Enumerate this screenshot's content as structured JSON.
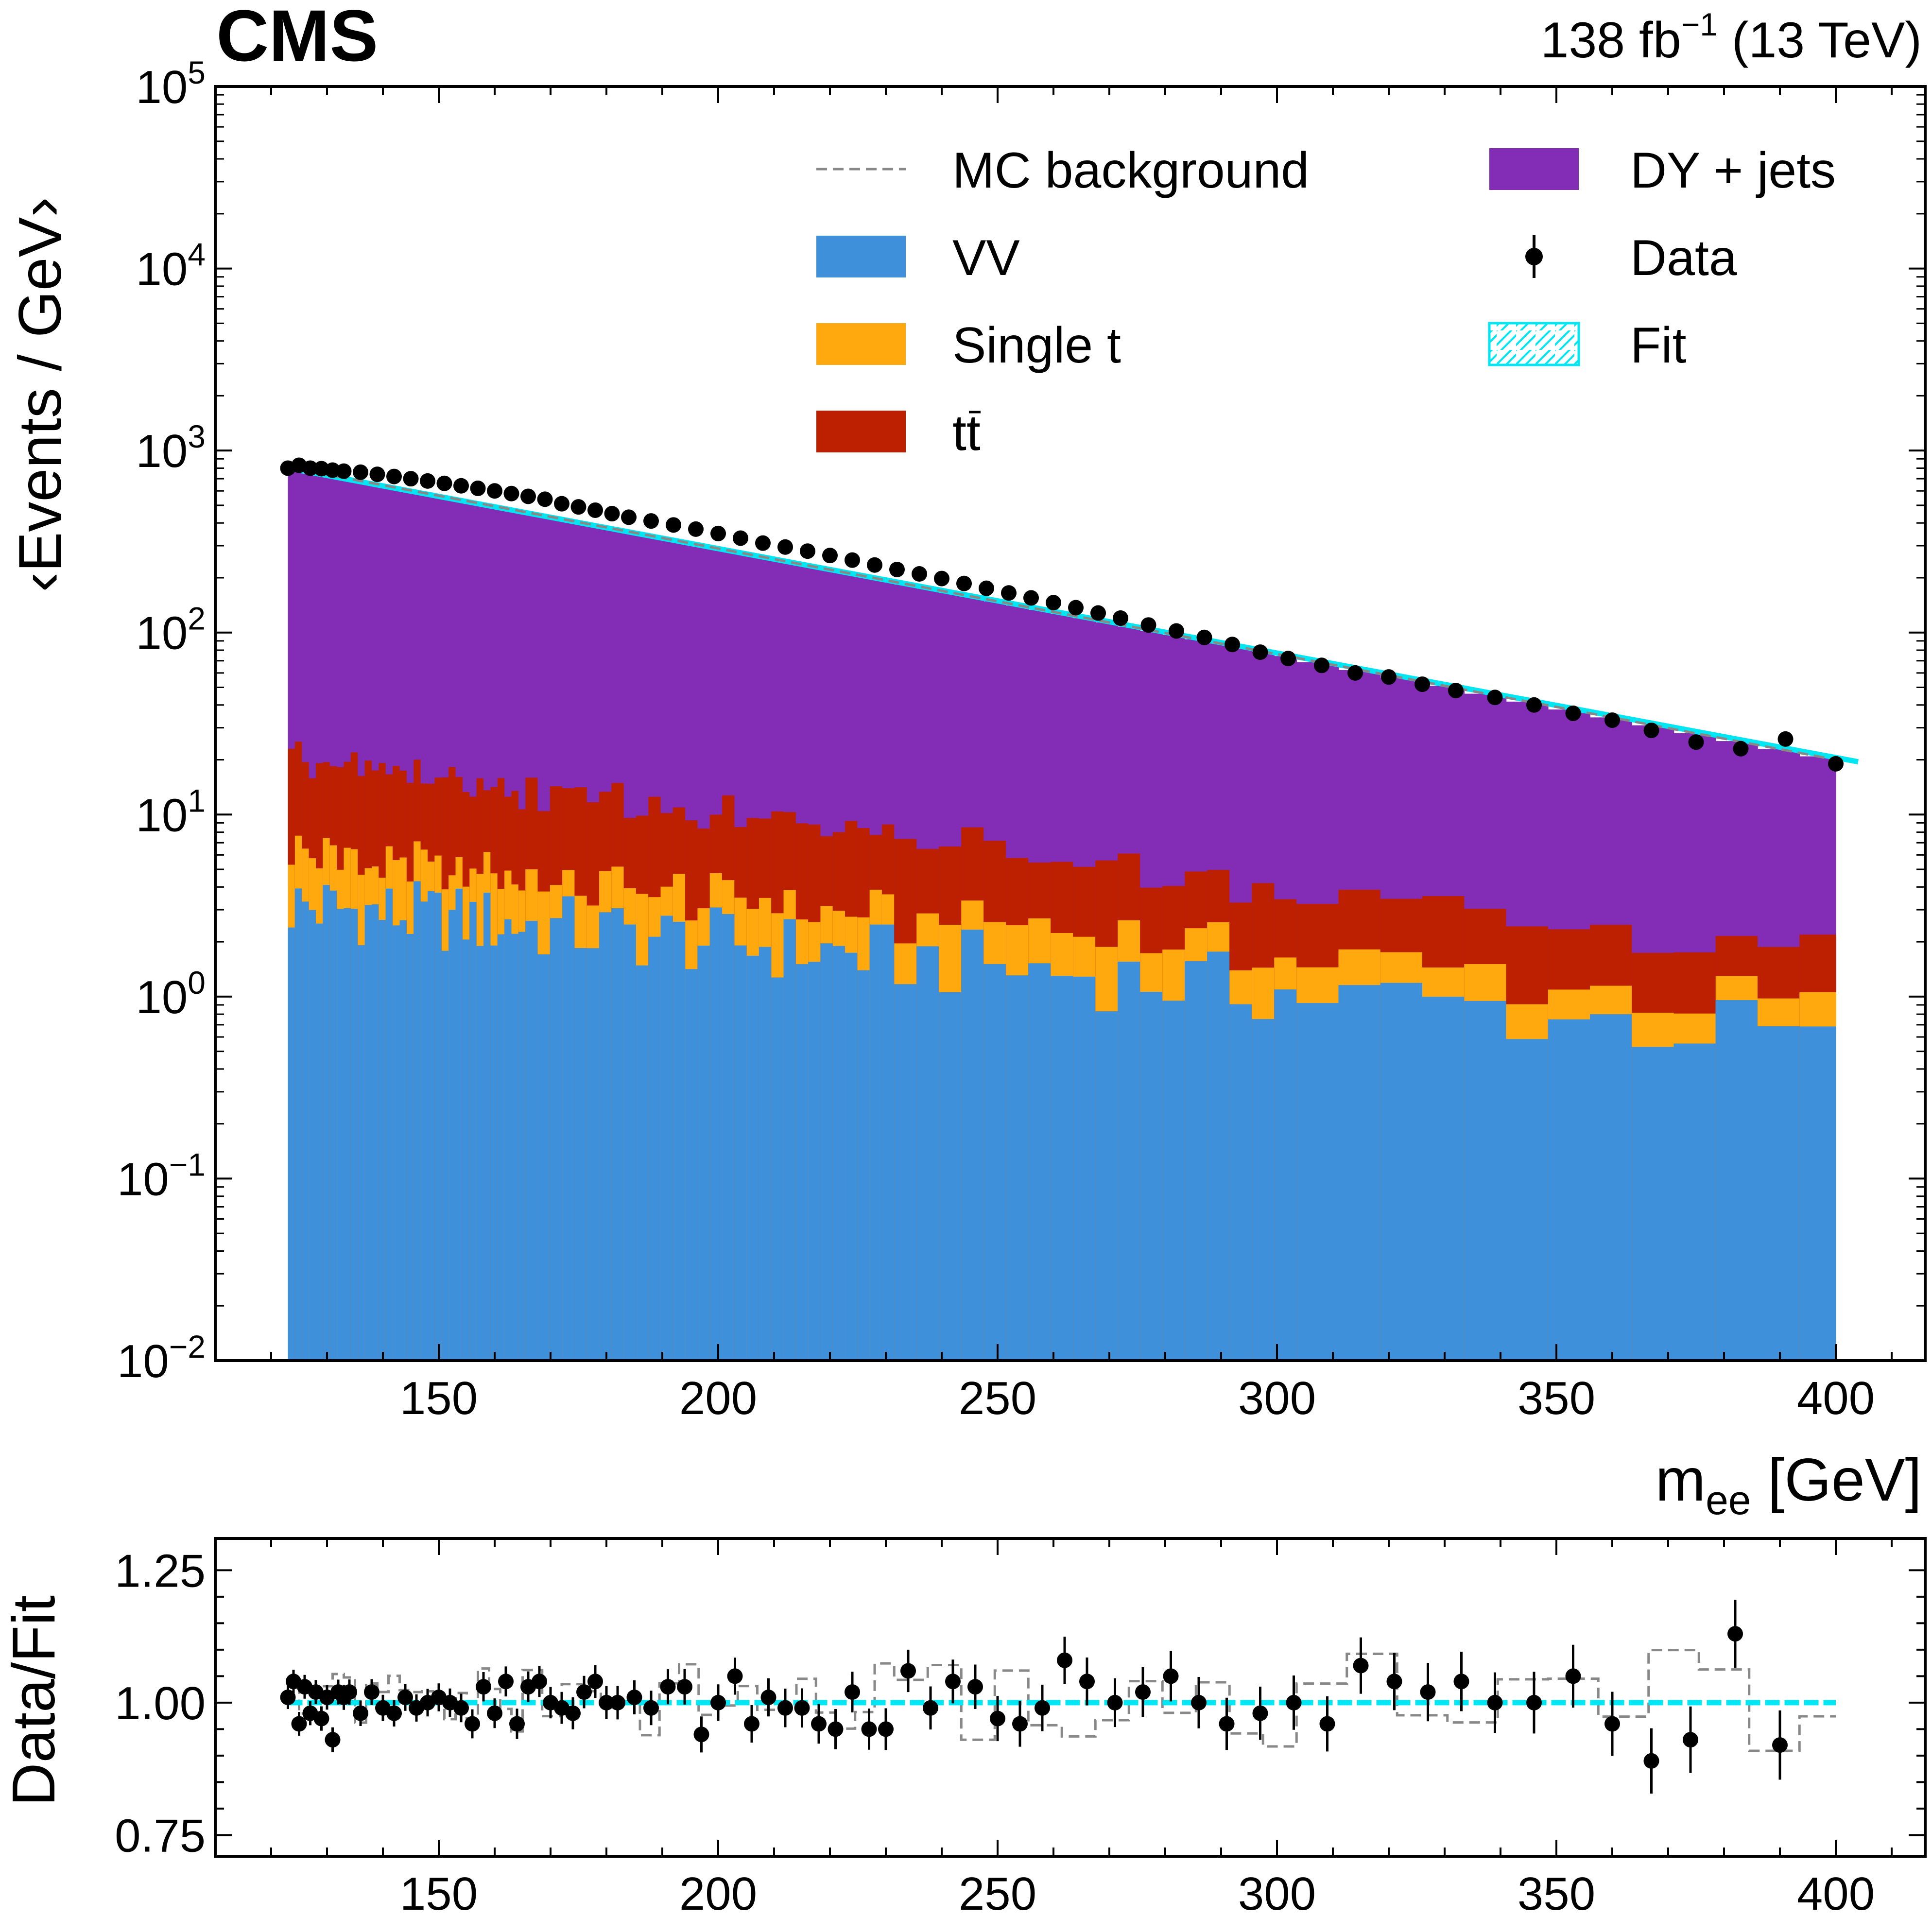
{
  "header": {
    "experiment": "CMS",
    "lumi_main": "138 fb",
    "lumi_sup": "−1",
    "lumi_energy": " (13 TeV)"
  },
  "colors": {
    "dy_jets": "#832db6",
    "vv": "#3f90da",
    "single_t": "#ffa90e",
    "ttbar": "#bd1f01",
    "fit": "#00e6f2",
    "mc_background": "#888888",
    "data": "#000000"
  },
  "chart_data": [
    {
      "type": "area",
      "panel": "main",
      "ylabel": "‹Events / GeV›",
      "xlabel_main": "m",
      "xlabel_sub": "ee",
      "xlabel_unit": " [GeV]",
      "xlim": [
        110,
        416
      ],
      "ylim": [
        0.01,
        100000
      ],
      "y_scale": "log",
      "x_ticks": [
        "150",
        "200",
        "250",
        "300",
        "350",
        "400"
      ],
      "y_tick_bases": [
        "10",
        "10",
        "10",
        "10",
        "10",
        "10",
        "10",
        "10"
      ],
      "y_tick_exps": [
        "−2",
        "−1",
        "0",
        "1",
        "2",
        "3",
        "4",
        "5"
      ],
      "legend": {
        "placement": "top-right",
        "entries": [
          {
            "key": "mc",
            "label": "MC background"
          },
          {
            "key": "dy",
            "label": "DY + jets"
          },
          {
            "key": "vv",
            "label": "VV"
          },
          {
            "key": "data",
            "label": "Data"
          },
          {
            "key": "st",
            "label": "Single t"
          },
          {
            "key": "fit",
            "label": "Fit"
          },
          {
            "key": "tt",
            "label": "tt"
          }
        ]
      },
      "components": {
        "vv": {
          "x0": 123,
          "x1": 400,
          "v0": 3.2,
          "v1": 0.58,
          "scatter": 0.45
        },
        "single_t": {
          "v0": 2.8,
          "v1": 0.26,
          "scatter": 0.35
        },
        "ttbar": {
          "v0": 13.5,
          "v1": 0.9,
          "scatter": 0.3
        },
        "total": {
          "v0": 800,
          "v1": 20
        }
      },
      "data_points": [
        [
          123,
          800
        ],
        [
          125,
          830
        ],
        [
          127,
          800
        ],
        [
          129,
          795
        ],
        [
          131,
          780
        ],
        [
          133,
          770
        ],
        [
          136,
          760
        ],
        [
          139,
          740
        ],
        [
          142,
          720
        ],
        [
          145,
          700
        ],
        [
          148,
          680
        ],
        [
          151,
          660
        ],
        [
          154,
          640
        ],
        [
          157,
          620
        ],
        [
          160,
          600
        ],
        [
          163,
          580
        ],
        [
          166,
          560
        ],
        [
          169,
          540
        ],
        [
          172,
          510
        ],
        [
          175,
          490
        ],
        [
          178,
          470
        ],
        [
          181,
          450
        ],
        [
          184,
          430
        ],
        [
          188,
          410
        ],
        [
          192,
          390
        ],
        [
          196,
          370
        ],
        [
          200,
          350
        ],
        [
          204,
          330
        ],
        [
          208,
          310
        ],
        [
          212,
          295
        ],
        [
          216,
          280
        ],
        [
          220,
          265
        ],
        [
          224,
          250
        ],
        [
          228,
          235
        ],
        [
          232,
          222
        ],
        [
          236,
          210
        ],
        [
          240,
          198
        ],
        [
          244,
          186
        ],
        [
          248,
          175
        ],
        [
          252,
          165
        ],
        [
          256,
          155
        ],
        [
          260,
          146
        ],
        [
          264,
          137
        ],
        [
          268,
          128
        ],
        [
          272,
          120
        ],
        [
          277,
          110
        ],
        [
          282,
          102
        ],
        [
          287,
          94
        ],
        [
          292,
          86
        ],
        [
          297,
          78
        ],
        [
          302,
          72
        ],
        [
          308,
          66
        ],
        [
          314,
          60
        ],
        [
          320,
          57
        ],
        [
          326,
          52
        ],
        [
          332,
          48
        ],
        [
          339,
          44
        ],
        [
          346,
          40
        ],
        [
          353,
          36
        ],
        [
          360,
          33
        ],
        [
          367,
          29
        ],
        [
          375,
          25
        ],
        [
          383,
          23
        ],
        [
          391,
          26
        ],
        [
          400,
          19
        ]
      ],
      "fit": {
        "x0": 123,
        "y0": 800,
        "x1": 404,
        "y1": 19.5
      },
      "mc_background": {
        "x0": 123,
        "y0": 810,
        "x1": 400,
        "y1": 20
      }
    },
    {
      "type": "scatter",
      "panel": "ratio",
      "ylabel": "Data/Fit",
      "xlim": [
        110,
        416
      ],
      "ylim": [
        0.71,
        1.31
      ],
      "x_ticks": [
        "150",
        "200",
        "250",
        "300",
        "350",
        "400"
      ],
      "y_ticks": [
        "0.75",
        "1.00",
        "1.25"
      ],
      "fit_line": 1.0,
      "points": [
        [
          123,
          1.01
        ],
        [
          124,
          1.04
        ],
        [
          125,
          0.96
        ],
        [
          126,
          1.03
        ],
        [
          127,
          0.98
        ],
        [
          128,
          1.02
        ],
        [
          129,
          0.97
        ],
        [
          130,
          1.01
        ],
        [
          131,
          0.93
        ],
        [
          132,
          1.02
        ],
        [
          133,
          1.01
        ],
        [
          134,
          1.02
        ],
        [
          136,
          0.98
        ],
        [
          138,
          1.02
        ],
        [
          140,
          0.99
        ],
        [
          142,
          0.98
        ],
        [
          144,
          1.01
        ],
        [
          146,
          0.99
        ],
        [
          148,
          1.0
        ],
        [
          150,
          1.01
        ],
        [
          152,
          1.0
        ],
        [
          154,
          0.99
        ],
        [
          156,
          0.96
        ],
        [
          158,
          1.03
        ],
        [
          160,
          0.98
        ],
        [
          162,
          1.04
        ],
        [
          164,
          0.96
        ],
        [
          166,
          1.03
        ],
        [
          168,
          1.04
        ],
        [
          170,
          1.0
        ],
        [
          172,
          0.99
        ],
        [
          174,
          0.98
        ],
        [
          176,
          1.02
        ],
        [
          178,
          1.04
        ],
        [
          180,
          1.0
        ],
        [
          182,
          1.0
        ],
        [
          185,
          1.01
        ],
        [
          188,
          0.99
        ],
        [
          191,
          1.03
        ],
        [
          194,
          1.03
        ],
        [
          197,
          0.94
        ],
        [
          200,
          1.0
        ],
        [
          203,
          1.05
        ],
        [
          206,
          0.96
        ],
        [
          209,
          1.01
        ],
        [
          212,
          0.99
        ],
        [
          215,
          0.99
        ],
        [
          218,
          0.96
        ],
        [
          221,
          0.95
        ],
        [
          224,
          1.02
        ],
        [
          227,
          0.95
        ],
        [
          230,
          0.95
        ],
        [
          234,
          1.06
        ],
        [
          238,
          0.99
        ],
        [
          242,
          1.04
        ],
        [
          246,
          1.03
        ],
        [
          250,
          0.97
        ],
        [
          254,
          0.96
        ],
        [
          258,
          0.99
        ],
        [
          262,
          1.08
        ],
        [
          266,
          1.04
        ],
        [
          271,
          1.0
        ],
        [
          276,
          1.02
        ],
        [
          281,
          1.05
        ],
        [
          286,
          1.0
        ],
        [
          291,
          0.96
        ],
        [
          297,
          0.98
        ],
        [
          303,
          1.0
        ],
        [
          309,
          0.96
        ],
        [
          315,
          1.07
        ],
        [
          321,
          1.04
        ],
        [
          327,
          1.02
        ],
        [
          333,
          1.04
        ],
        [
          339,
          1.0
        ],
        [
          346,
          1.0
        ],
        [
          353,
          1.05
        ],
        [
          360,
          0.96
        ],
        [
          367,
          0.89
        ],
        [
          374,
          0.93
        ],
        [
          382,
          1.13
        ],
        [
          390,
          0.92
        ]
      ]
    }
  ]
}
